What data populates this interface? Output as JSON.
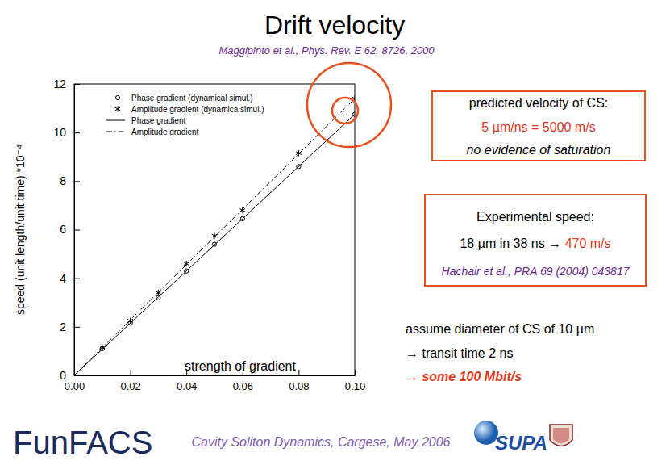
{
  "slide": {
    "title": "Drift velocity",
    "subtitle": "Maggipinto et al., Phys. Rev. E 62, 8726, 2000",
    "prediction": {
      "heading": "predicted velocity of CS:",
      "value": "5 µm/ns = 5000 m/s",
      "note": "no evidence of saturation"
    },
    "experiment": {
      "heading": "Experimental speed:",
      "detail": "18 µm in 38 ns → ",
      "result": "470 m/s",
      "source": "Hachair et al., PRA 69 (2004) 043817"
    },
    "estimate": {
      "premise": "assume diameter of CS of 10 µm",
      "step": "→ transit time 2 ns",
      "conclusion": "→ some 100 Mbit/s"
    },
    "footer": {
      "logo": "FunFACS",
      "event": "Cavity Soliton Dynamics, Cargese, May 2006",
      "partner": "SUPA"
    }
  },
  "chart_data": {
    "type": "line",
    "xlabel": "strength of gradient",
    "ylabel": "speed (unit length/unit time) *10⁻⁴",
    "xlim": [
      0,
      0.1
    ],
    "ylim": [
      0,
      12
    ],
    "xticks": [
      {
        "value": 0,
        "label": "0.00"
      },
      {
        "value": 0.02,
        "label": "0.02"
      },
      {
        "value": 0.04,
        "label": "0.04"
      },
      {
        "value": 0.06,
        "label": "0.06"
      },
      {
        "value": 0.08,
        "label": "0.08"
      },
      {
        "value": 0.1,
        "label": "0.10"
      }
    ],
    "yticks": [
      0,
      2,
      4,
      6,
      8,
      10,
      12
    ],
    "grid": false,
    "legend": "upper left",
    "series": [
      {
        "name": "Phase gradient (dynamical simul.)",
        "type": "scatter",
        "marker": "circle",
        "color": "#000000",
        "x": [
          0.01,
          0.02,
          0.03,
          0.04,
          0.05,
          0.06,
          0.08,
          0.1
        ],
        "values": [
          1.1,
          2.15,
          3.2,
          4.3,
          5.4,
          6.45,
          8.6,
          10.75
        ]
      },
      {
        "name": "Amplitude gradient (dynamica simul.)",
        "type": "scatter",
        "marker": "star",
        "color": "#000000",
        "x": [
          0.01,
          0.02,
          0.03,
          0.04,
          0.05,
          0.06,
          0.08,
          0.1
        ],
        "values": [
          1.15,
          2.25,
          3.4,
          4.6,
          5.75,
          6.8,
          9.15,
          11.4
        ]
      },
      {
        "name": "Phase gradient",
        "type": "line",
        "line_style": "solid",
        "color": "#000000",
        "x": [
          0,
          0.1
        ],
        "values": [
          0,
          10.75
        ]
      },
      {
        "name": "Amplitude gradient",
        "type": "line",
        "line_style": "dashdot",
        "color": "#000000",
        "x": [
          0,
          0.1
        ],
        "values": [
          0,
          11.4
        ]
      }
    ]
  }
}
